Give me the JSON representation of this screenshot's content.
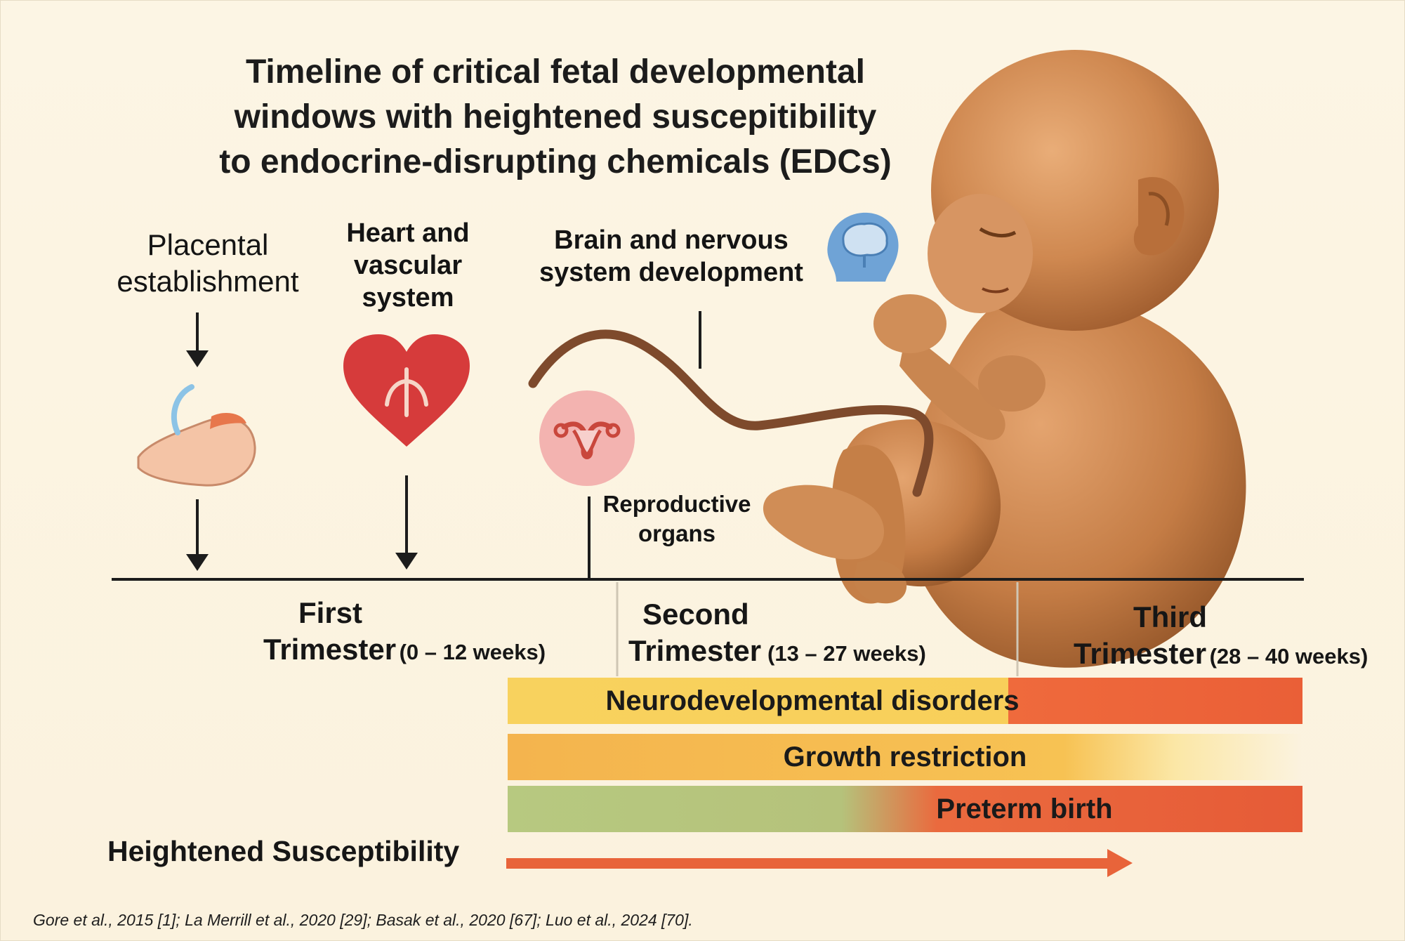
{
  "title": {
    "line1": "Timeline of critical fetal developmental",
    "line2": "windows with heightened suscepitibility",
    "line3": "to endocrine-disrupting chemicals (EDCs)"
  },
  "windows": {
    "placental": {
      "line1": "Placental",
      "line2": "establishment"
    },
    "heart": {
      "line1": "Heart and",
      "line2": "vascular",
      "line3": "system"
    },
    "brain": {
      "line1": "Brain and nervous",
      "line2": "system development"
    },
    "reproductive": {
      "line1": "Reproductive",
      "line2": "organs"
    }
  },
  "trimesters": [
    {
      "name_line1": "First",
      "name_line2": "Trimester",
      "range": "(0 – 12 weeks)"
    },
    {
      "name_line1": "Second",
      "name_line2": "Trimester",
      "range": "(13 – 27 weeks)"
    },
    {
      "name_line1": "Third",
      "name_line2": "Trimester",
      "range": "(28 – 40 weeks)"
    }
  ],
  "outcomes": [
    {
      "label": "Neurodevelopmental disorders",
      "color_start": "#f8d25e",
      "color_end": "#ea5f37"
    },
    {
      "label": "Growth restriction",
      "color_start": "#f4b44e",
      "color_end": "#fbf3de"
    },
    {
      "label": "Preterm birth",
      "color_start": "#b7c980",
      "color_end": "#e65b37"
    }
  ],
  "susceptibility_label": "Heightened Susceptibility",
  "references": "Gore et al., 2015 [1]; La Merrill et al., 2020 [29]; Basak et al., 2020 [67]; Luo et al., 2024 [70].",
  "icons": [
    "placenta-icon",
    "heart-icon",
    "brain-head-icon",
    "uterus-icon",
    "fetus-illustration"
  ],
  "colors": {
    "background": "#fbf3e0",
    "arrow": "#e8643a",
    "heart": "#d63b3b",
    "brain": "#6fa3d6",
    "uterus": "#f3b3b0",
    "skin": "#c9814a"
  }
}
